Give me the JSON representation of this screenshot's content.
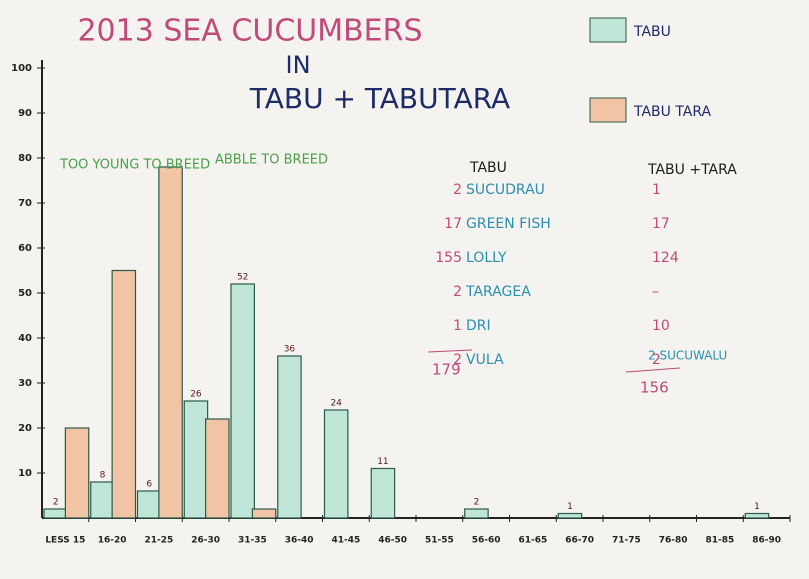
{
  "chart_data": {
    "type": "bar",
    "title_lines": [
      "2013 SEA CUCUMBERS",
      "IN",
      "TABU + TABUTARA"
    ],
    "categories": [
      "LESS 15",
      "16-20",
      "21-25",
      "26-30",
      "31-35",
      "36-40",
      "41-45",
      "46-50",
      "51-55",
      "56-60",
      "61-65",
      "66-70",
      "71-75",
      "76-80",
      "81-85",
      "86-90"
    ],
    "series": [
      {
        "name": "TABU",
        "color": "#bfe6d8",
        "values": [
          2,
          8,
          6,
          26,
          52,
          36,
          24,
          11,
          null,
          2,
          null,
          1,
          null,
          null,
          null,
          1
        ]
      },
      {
        "name": "TABU TARA",
        "color": "#f1c4a6",
        "values": [
          20,
          55,
          78,
          22,
          2,
          null,
          null,
          null,
          null,
          null,
          null,
          null,
          null,
          null,
          null,
          null
        ]
      }
    ],
    "ylim": [
      0,
      100
    ],
    "yticks": [
      10,
      20,
      30,
      40,
      50,
      60,
      70,
      80,
      90,
      100
    ],
    "annotations": [
      "TOO YOUNG TO BREED",
      "ABBLE TO BREED"
    ],
    "table": {
      "headers": [
        "TABU",
        "TABU +TARA"
      ],
      "rows": [
        [
          "2",
          "SUCUDRAU",
          "1"
        ],
        [
          "17",
          "GREEN FISH",
          "17"
        ],
        [
          "155",
          "LOLLY",
          "124"
        ],
        [
          "2",
          "TARAGEA",
          "–"
        ],
        [
          "1",
          "DRI",
          "10"
        ],
        [
          "2",
          "VULA",
          "2"
        ]
      ],
      "note": "2 SUCUWALU",
      "totals": [
        "179",
        "156"
      ]
    }
  }
}
